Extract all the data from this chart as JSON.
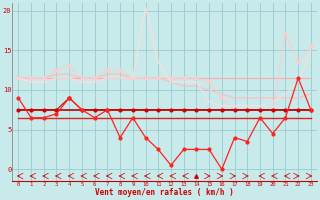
{
  "xlabel": "Vent moyen/en rafales ( km/h )",
  "x": [
    0,
    1,
    2,
    3,
    4,
    5,
    6,
    7,
    8,
    9,
    10,
    11,
    12,
    13,
    14,
    15,
    16,
    17,
    18,
    19,
    20,
    21,
    22,
    23
  ],
  "series": [
    {
      "color": "#ffaaaa",
      "lw": 0.8,
      "marker": null,
      "values": [
        11.5,
        11.5,
        11.5,
        11.5,
        11.5,
        11.5,
        11.5,
        11.5,
        11.5,
        11.5,
        11.5,
        11.5,
        11.5,
        11.5,
        11.5,
        11.5,
        11.5,
        11.5,
        11.5,
        11.5,
        11.5,
        11.5,
        11.5,
        11.5
      ]
    },
    {
      "color": "#ffbbbb",
      "lw": 0.8,
      "marker": null,
      "values": [
        11.5,
        11.5,
        11.5,
        12.0,
        12.0,
        11.5,
        11.5,
        12.0,
        12.0,
        11.5,
        11.5,
        11.5,
        11.0,
        10.5,
        10.5,
        10.0,
        9.5,
        9.0,
        9.0,
        9.0,
        9.0,
        9.0,
        9.0,
        9.5
      ]
    },
    {
      "color": "#ffcccc",
      "lw": 0.8,
      "marker": "o",
      "markersize": 2,
      "values": [
        11.5,
        11.5,
        11.5,
        12.5,
        13.0,
        11.5,
        11.5,
        12.5,
        12.5,
        11.5,
        11.5,
        11.5,
        11.5,
        11.5,
        11.5,
        11.0,
        9.0,
        7.5,
        7.5,
        7.5,
        7.5,
        17.0,
        13.5,
        15.5
      ]
    },
    {
      "color": "#ffdddd",
      "lw": 0.8,
      "marker": null,
      "values": [
        11.5,
        11.0,
        11.0,
        11.5,
        11.5,
        11.0,
        11.0,
        11.5,
        11.5,
        11.5,
        20.5,
        13.5,
        11.0,
        11.0,
        11.0,
        8.5,
        8.0,
        8.0,
        8.0,
        8.0,
        8.5,
        9.5,
        11.0,
        15.0
      ]
    },
    {
      "color": "#dd2222",
      "lw": 1.0,
      "marker": null,
      "values": [
        6.5,
        6.5,
        6.5,
        6.5,
        6.5,
        6.5,
        6.5,
        6.5,
        6.5,
        6.5,
        6.5,
        6.5,
        6.5,
        6.5,
        6.5,
        6.5,
        6.5,
        6.5,
        6.5,
        6.5,
        6.5,
        6.5,
        6.5,
        6.5
      ]
    },
    {
      "color": "#bb0000",
      "lw": 1.2,
      "marker": null,
      "values": [
        7.5,
        7.5,
        7.5,
        7.5,
        7.5,
        7.5,
        7.5,
        7.5,
        7.5,
        7.5,
        7.5,
        7.5,
        7.5,
        7.5,
        7.5,
        7.5,
        7.5,
        7.5,
        7.5,
        7.5,
        7.5,
        7.5,
        7.5,
        7.5
      ]
    },
    {
      "color": "#cc0000",
      "lw": 0.8,
      "marker": "o",
      "markersize": 2,
      "values": [
        7.5,
        7.5,
        7.5,
        7.5,
        9.0,
        7.5,
        7.5,
        7.5,
        7.5,
        7.5,
        7.5,
        7.5,
        7.5,
        7.5,
        7.5,
        7.5,
        7.5,
        7.5,
        7.5,
        7.5,
        7.5,
        7.5,
        7.5,
        7.5
      ]
    },
    {
      "color": "#ff2222",
      "lw": 0.9,
      "marker": "o",
      "markersize": 2,
      "values": [
        9.0,
        6.5,
        6.5,
        7.0,
        9.0,
        7.5,
        6.5,
        7.5,
        4.0,
        6.5,
        4.0,
        2.5,
        0.5,
        2.5,
        2.5,
        2.5,
        0.0,
        4.0,
        3.5,
        6.5,
        4.5,
        6.5,
        11.5,
        7.5
      ]
    }
  ],
  "arrow_dirs": [
    -1,
    -1,
    -1,
    -1,
    -1,
    -1,
    -1,
    -1,
    -1,
    -1,
    -1,
    -1,
    -1,
    -1,
    0,
    1,
    1,
    1,
    1,
    -1,
    -1,
    -1,
    1,
    1
  ],
  "ylim": [
    -1.5,
    21
  ],
  "yticks": [
    0,
    5,
    10,
    15,
    20
  ],
  "bg_color": "#c8eaea",
  "grid_color": "#99cccc",
  "label_color": "#cc0000",
  "xlabel_color": "#cc0000"
}
